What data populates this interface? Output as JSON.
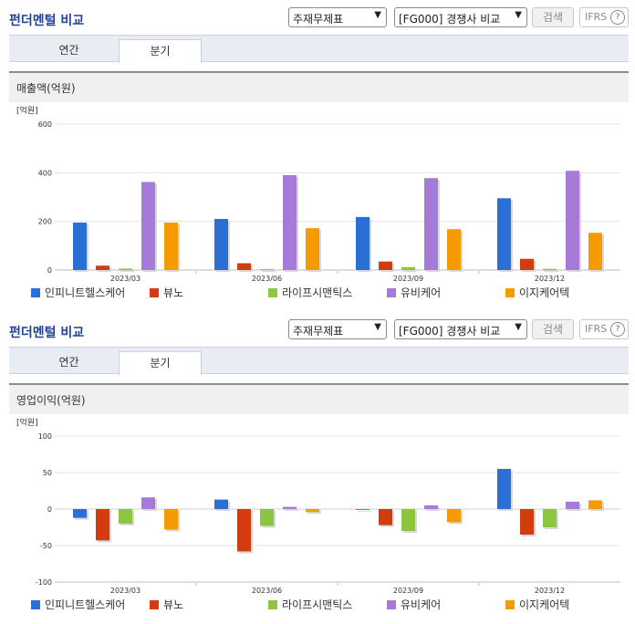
{
  "sections": [
    {
      "title": "펀더멘털 비교",
      "select1": "주재무제표",
      "select2": "[FG000] 경쟁사 비교",
      "search_label": "검색",
      "ifrs_label": "IFRS",
      "ifrs_help": "?",
      "tabs": [
        "연간",
        "분기"
      ],
      "active_tab": 1,
      "panel_title": "매출액(억원)"
    },
    {
      "title": "펀더멘털 비교",
      "select1": "주재무제표",
      "select2": "[FG000] 경쟁사 비교",
      "search_label": "검색",
      "ifrs_label": "IFRS",
      "ifrs_help": "?",
      "tabs": [
        "연간",
        "분기"
      ],
      "active_tab": 1,
      "panel_title": "영업이익(억원)"
    }
  ],
  "chart_data": [
    {
      "type": "bar",
      "unit_label": "[억원]",
      "categories": [
        "2023/03",
        "2023/06",
        "2023/09",
        "2023/12"
      ],
      "ylim": [
        0,
        600
      ],
      "yticks": [
        0,
        200,
        400,
        600
      ],
      "grid": true,
      "legend_position": "bottom",
      "series": [
        {
          "name": "인피니트헬스케어",
          "color": "#2a6fd6",
          "values": [
            195,
            210,
            218,
            295
          ]
        },
        {
          "name": "뷰노",
          "color": "#d23c0f",
          "values": [
            18,
            28,
            35,
            46
          ]
        },
        {
          "name": "라이프시맨틱스",
          "color": "#8cc63f",
          "values": [
            6,
            4,
            12,
            5
          ]
        },
        {
          "name": "유비케어",
          "color": "#a57ad8",
          "values": [
            362,
            390,
            378,
            408
          ]
        },
        {
          "name": "이지케어텍",
          "color": "#f59a00",
          "values": [
            195,
            172,
            168,
            153
          ]
        }
      ]
    },
    {
      "type": "bar",
      "unit_label": "[억원]",
      "categories": [
        "2023/03",
        "2023/06",
        "2023/09",
        "2023/12"
      ],
      "ylim": [
        -100,
        100
      ],
      "yticks": [
        -100,
        -50,
        0,
        50,
        100
      ],
      "grid": true,
      "legend_position": "bottom",
      "series": [
        {
          "name": "인피니트헬스케어",
          "color": "#2a6fd6",
          "values": [
            -12,
            13,
            0,
            55
          ]
        },
        {
          "name": "뷰노",
          "color": "#d23c0f",
          "values": [
            -43,
            -58,
            -22,
            -35
          ]
        },
        {
          "name": "라이프시맨틱스",
          "color": "#8cc63f",
          "values": [
            -20,
            -23,
            -30,
            -25
          ]
        },
        {
          "name": "유비케어",
          "color": "#a57ad8",
          "values": [
            16,
            3,
            5,
            10
          ]
        },
        {
          "name": "이지케어텍",
          "color": "#f59a00",
          "values": [
            -28,
            -4,
            -18,
            12
          ]
        }
      ]
    }
  ]
}
